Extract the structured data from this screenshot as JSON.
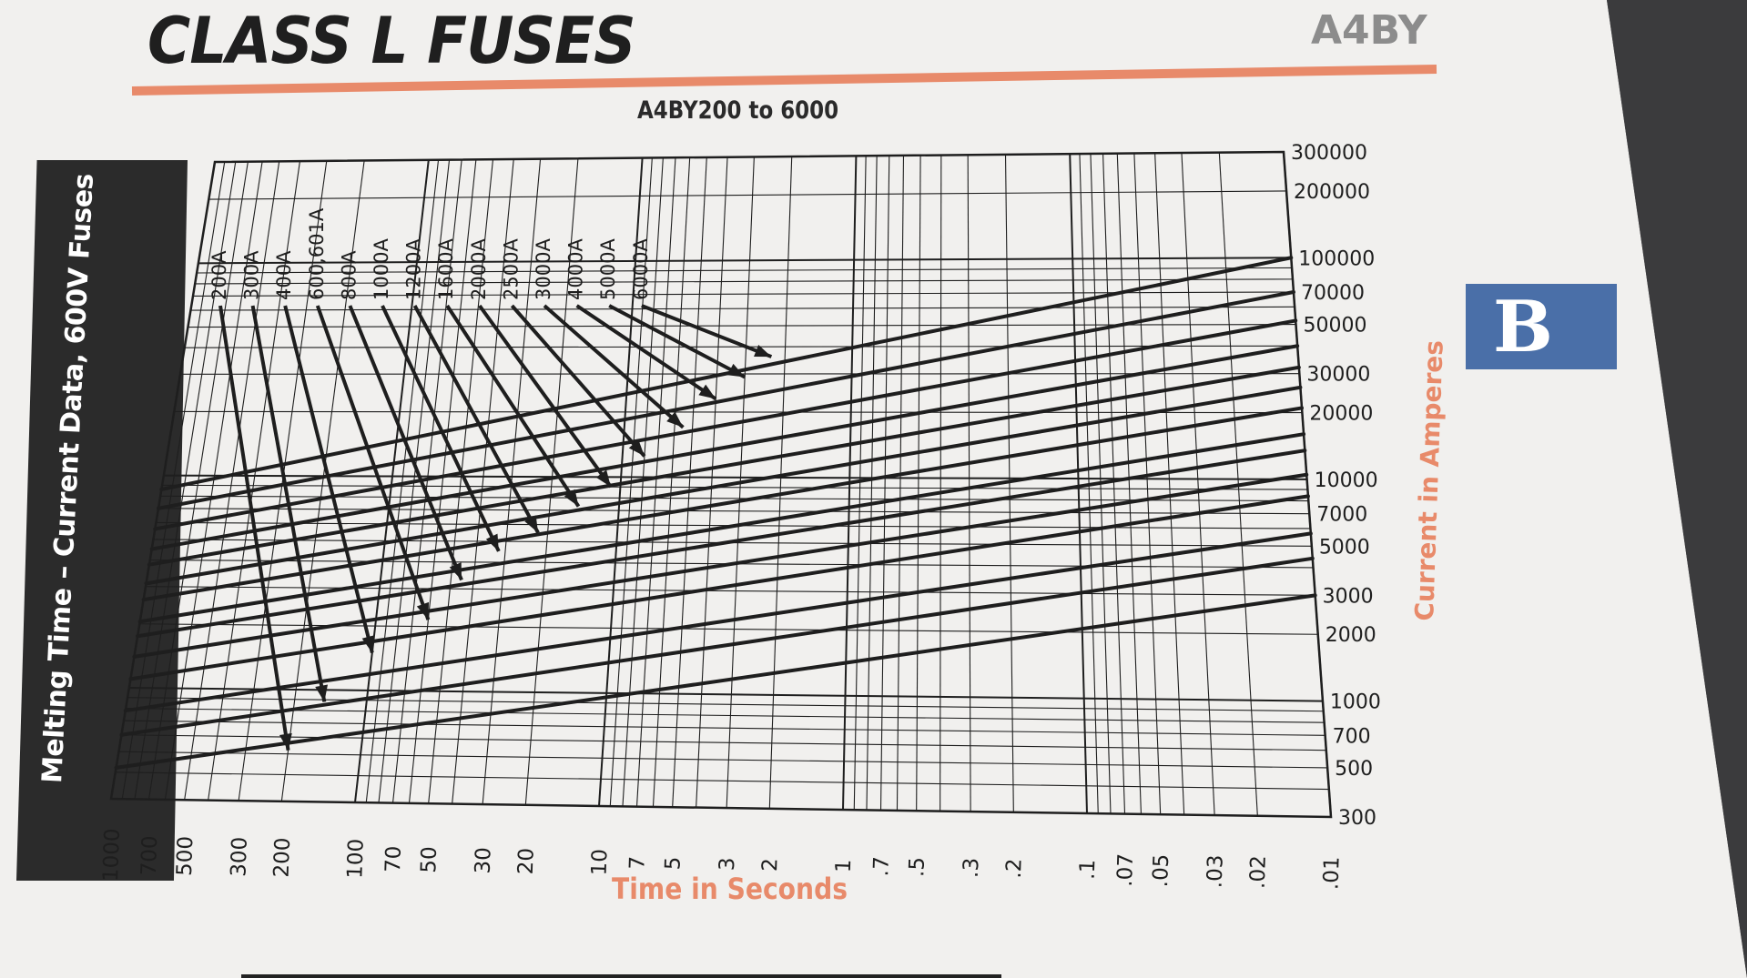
{
  "page": {
    "title": "CLASS L FUSES",
    "product_code": "A4BY",
    "section_tab": "B",
    "side_band": "Melting Time – Current Data, 600V Fuses",
    "colors": {
      "paper": "#f3f2f0",
      "ink": "#1e1e1e",
      "accent": "#e88a6a",
      "tab": "#4a6fa8",
      "band": "#2b2b2b"
    }
  },
  "chart_data": {
    "type": "line",
    "title": "A4BY200 to 6000",
    "xlabel": "Time in Seconds",
    "ylabel": "Current in Amperes",
    "x_scale": "log",
    "y_scale": "log",
    "x_reversed": true,
    "xlim": [
      1000,
      0.01
    ],
    "ylim": [
      300,
      300000
    ],
    "grid": true,
    "x_tick_labels": [
      "1000",
      "700",
      "500",
      "300",
      "200",
      "100",
      "70",
      "50",
      "30",
      "20",
      "10",
      "7",
      "5",
      "3",
      "2",
      "1",
      ".7",
      ".5",
      ".3",
      ".2",
      ".1",
      ".07",
      ".05",
      ".03",
      ".02",
      ".01"
    ],
    "x_ticks": [
      1000,
      700,
      500,
      300,
      200,
      100,
      70,
      50,
      30,
      20,
      10,
      7,
      5,
      3,
      2,
      1,
      0.7,
      0.5,
      0.3,
      0.2,
      0.1,
      0.07,
      0.05,
      0.03,
      0.02,
      0.01
    ],
    "y_tick_labels": [
      "300000",
      "200000",
      "100000",
      "70000",
      "50000",
      "30000",
      "20000",
      "10000",
      "7000",
      "5000",
      "3000",
      "2000",
      "1000",
      "700",
      "500",
      "300"
    ],
    "y_ticks": [
      300000,
      200000,
      100000,
      70000,
      50000,
      30000,
      20000,
      10000,
      7000,
      5000,
      3000,
      2000,
      1000,
      700,
      500,
      300
    ],
    "series": [
      {
        "name": "200A",
        "points": [
          [
            1000,
            420
          ],
          [
            0.01,
            3000
          ]
        ]
      },
      {
        "name": "300A",
        "points": [
          [
            1000,
            600
          ],
          [
            0.01,
            4400
          ]
        ]
      },
      {
        "name": "400A",
        "points": [
          [
            1000,
            780
          ],
          [
            0.01,
            5700
          ]
        ]
      },
      {
        "name": "600,601A",
        "points": [
          [
            1000,
            1100
          ],
          [
            0.01,
            8400
          ]
        ]
      },
      {
        "name": "800A",
        "points": [
          [
            1000,
            1400
          ],
          [
            0.01,
            10500
          ]
        ]
      },
      {
        "name": "1000A",
        "points": [
          [
            1000,
            1750
          ],
          [
            0.01,
            13500
          ]
        ]
      },
      {
        "name": "1200A",
        "points": [
          [
            1000,
            2050
          ],
          [
            0.01,
            16000
          ]
        ]
      },
      {
        "name": "1600A",
        "points": [
          [
            1000,
            2600
          ],
          [
            0.01,
            21000
          ]
        ]
      },
      {
        "name": "2000A",
        "points": [
          [
            1000,
            3100
          ],
          [
            0.01,
            26000
          ]
        ]
      },
      {
        "name": "2500A",
        "points": [
          [
            1000,
            3800
          ],
          [
            0.01,
            32000
          ]
        ]
      },
      {
        "name": "3000A",
        "points": [
          [
            1000,
            4500
          ],
          [
            0.01,
            40000
          ]
        ]
      },
      {
        "name": "4000A",
        "points": [
          [
            1000,
            5600
          ],
          [
            0.01,
            52000
          ]
        ]
      },
      {
        "name": "5000A",
        "points": [
          [
            1000,
            7000
          ],
          [
            0.01,
            70000
          ]
        ]
      },
      {
        "name": "6000A",
        "points": [
          [
            1000,
            8600
          ],
          [
            0.01,
            100000
          ]
        ]
      }
    ],
    "callouts": [
      {
        "label": "200A",
        "target": [
          200,
          520
        ]
      },
      {
        "label": "300A",
        "target": [
          150,
          880
        ]
      },
      {
        "label": "400A",
        "target": [
          100,
          1500
        ]
      },
      {
        "label": "600,601A",
        "target": [
          60,
          2150
        ]
      },
      {
        "label": "800A",
        "target": [
          45,
          3300
        ]
      },
      {
        "label": "1000A",
        "target": [
          32,
          4500
        ]
      },
      {
        "label": "1200A",
        "target": [
          22,
          5500
        ]
      },
      {
        "label": "1600A",
        "target": [
          15,
          7300
        ]
      },
      {
        "label": "2000A",
        "target": [
          11,
          9000
        ]
      },
      {
        "label": "2500A",
        "target": [
          8,
          12500
        ]
      },
      {
        "label": "3000A",
        "target": [
          5.5,
          17000
        ]
      },
      {
        "label": "4000A",
        "target": [
          4,
          23000
        ]
      },
      {
        "label": "5000A",
        "target": [
          3,
          29000
        ]
      },
      {
        "label": "6000A",
        "target": [
          2.3,
          36000
        ]
      }
    ]
  }
}
